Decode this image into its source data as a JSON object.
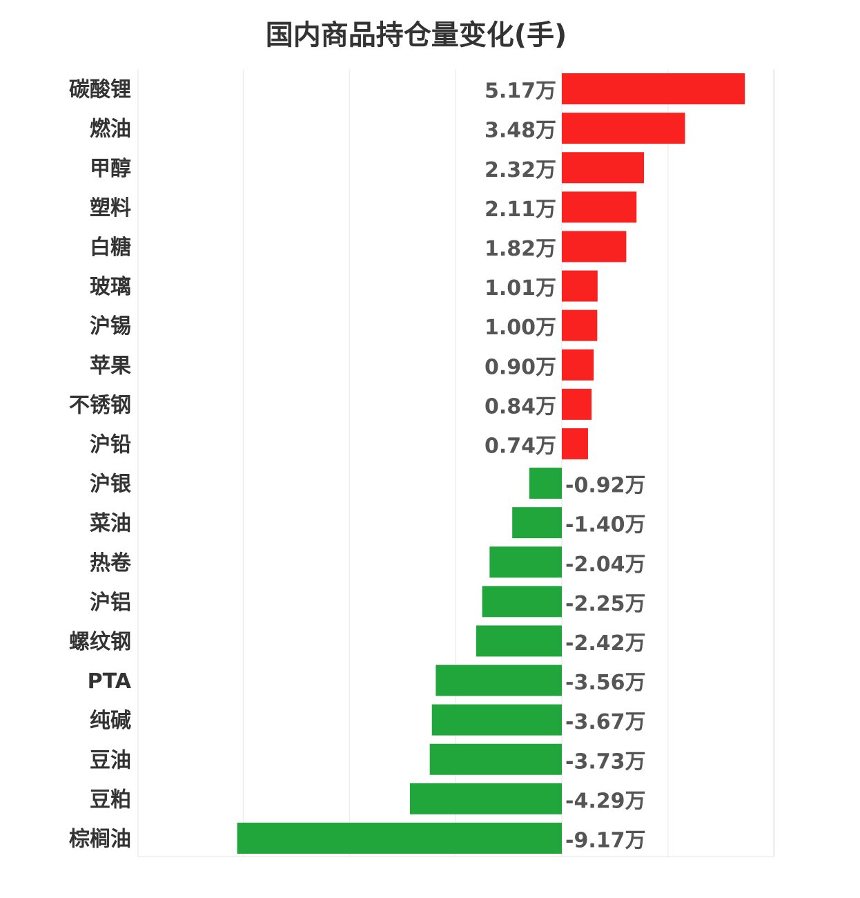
{
  "chart_data": {
    "type": "bar",
    "orientation": "horizontal",
    "title": "国内商品持仓量变化(手)",
    "unit": "万",
    "categories": [
      "碳酸锂",
      "燃油",
      "甲醇",
      "塑料",
      "白糖",
      "玻璃",
      "沪锡",
      "苹果",
      "不锈钢",
      "沪铅",
      "沪银",
      "菜油",
      "热卷",
      "沪铝",
      "螺纹钢",
      "PTA",
      "纯碱",
      "豆油",
      "豆粕",
      "棕榈油"
    ],
    "values": [
      5.17,
      3.48,
      2.32,
      2.11,
      1.82,
      1.01,
      1.0,
      0.9,
      0.84,
      0.74,
      -0.92,
      -1.4,
      -2.04,
      -2.25,
      -2.42,
      -3.56,
      -3.67,
      -3.73,
      -4.29,
      -9.17
    ],
    "value_labels": [
      "5.17万",
      "3.48万",
      "2.32万",
      "2.11万",
      "1.82万",
      "1.01万",
      "1.00万",
      "0.90万",
      "0.84万",
      "0.74万",
      "-0.92万",
      "-1.40万",
      "-2.04万",
      "-2.25万",
      "-2.42万",
      "-3.56万",
      "-3.67万",
      "-3.73万",
      "-4.29万",
      "-9.17万"
    ],
    "xlim": [
      -12,
      6
    ],
    "grid": true,
    "colors": {
      "positive": "#fa2121",
      "negative": "#21a63b",
      "grid": "#e6e6e6"
    }
  }
}
